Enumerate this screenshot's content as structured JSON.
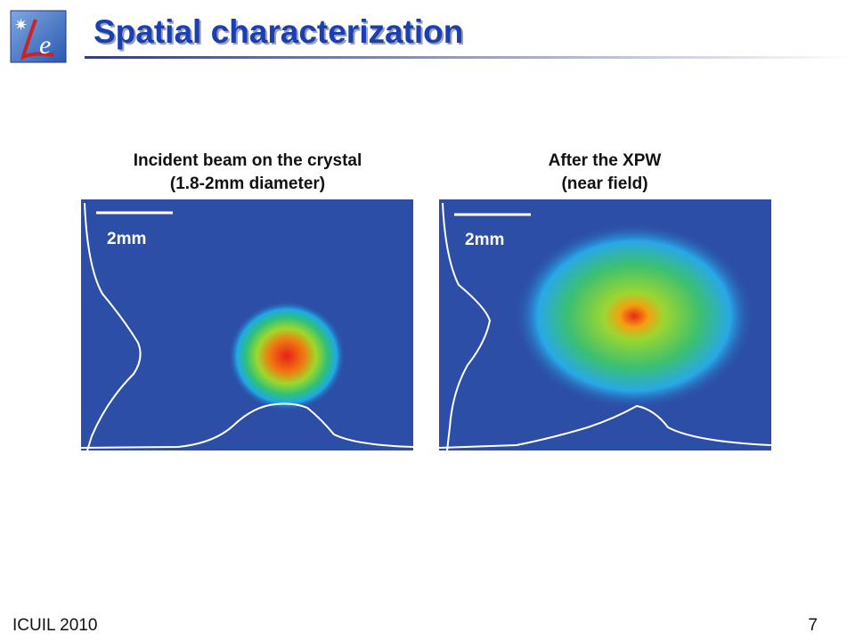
{
  "header": {
    "title": "Spatial characterization"
  },
  "panels": [
    {
      "caption": [
        "Incident beam on the crystal",
        "(1.8-2mm diameter)"
      ],
      "scale_label": "2mm"
    },
    {
      "caption": [
        "After the XPW",
        "(near field)"
      ],
      "scale_label": "2mm"
    }
  ],
  "footer": {
    "left": "ICUIL 2010",
    "page": "7"
  }
}
